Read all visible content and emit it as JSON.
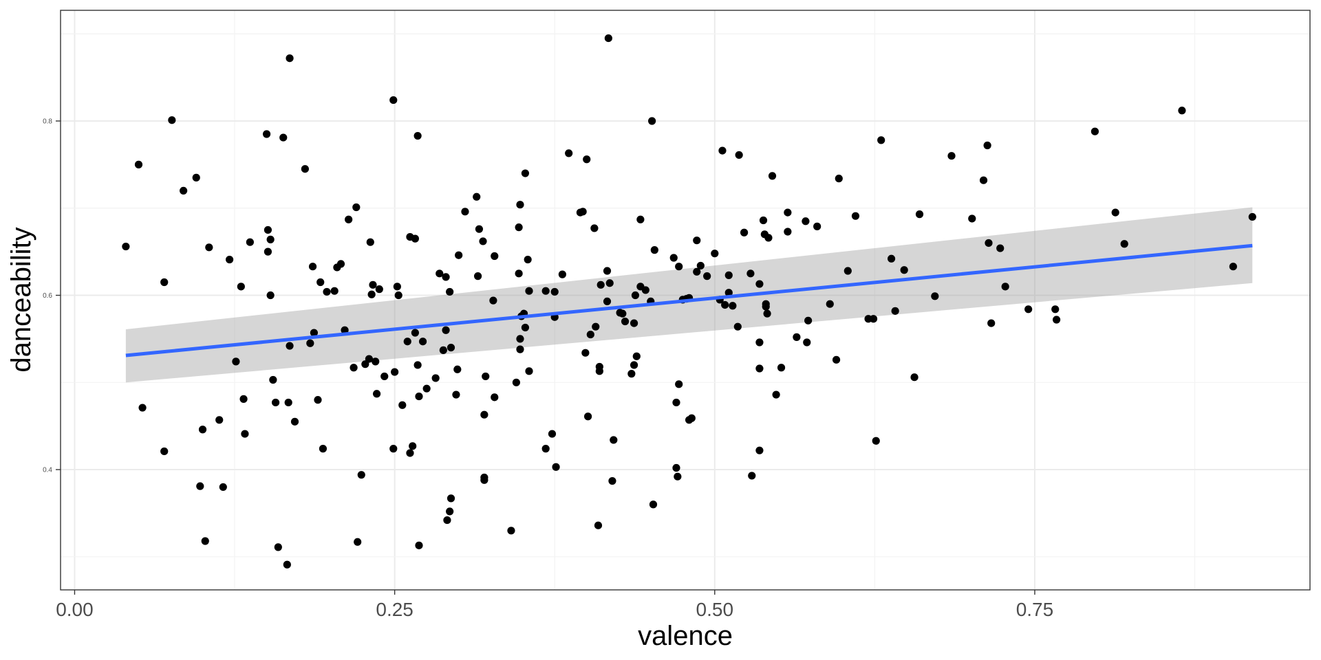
{
  "chart_data": {
    "type": "scatter",
    "title": "",
    "xlabel": "valence",
    "ylabel": "danceability",
    "xlim": [
      -0.011,
      0.965
    ],
    "ylim": [
      0.262,
      0.927
    ],
    "x_ticks": [
      0.0,
      0.25,
      0.5,
      0.75
    ],
    "x_tick_labels": [
      "0.00",
      "0.25",
      "0.50",
      "0.75"
    ],
    "y_ticks": [
      0.4,
      0.6,
      0.8
    ],
    "y_tick_labels": [
      "0.4",
      "0.6",
      "0.8"
    ],
    "grid": true,
    "legend": "none",
    "colors": {
      "points": "#000000",
      "fit_line": "#3366ff",
      "ci_band": "#999999"
    },
    "fit": {
      "method": "lm",
      "se": true,
      "x": [
        0.04,
        0.92
      ],
      "y": [
        0.531,
        0.657
      ],
      "ci_lower": [
        0.5,
        0.614
      ],
      "ci_upper": [
        0.561,
        0.701
      ]
    },
    "points": [
      [
        0.04,
        0.656
      ],
      [
        0.05,
        0.75
      ],
      [
        0.053,
        0.471
      ],
      [
        0.07,
        0.615
      ],
      [
        0.07,
        0.421
      ],
      [
        0.076,
        0.801
      ],
      [
        0.085,
        0.72
      ],
      [
        0.095,
        0.735
      ],
      [
        0.098,
        0.381
      ],
      [
        0.1,
        0.446
      ],
      [
        0.102,
        0.318
      ],
      [
        0.105,
        0.655
      ],
      [
        0.113,
        0.457
      ],
      [
        0.116,
        0.38
      ],
      [
        0.121,
        0.641
      ],
      [
        0.126,
        0.524
      ],
      [
        0.13,
        0.61
      ],
      [
        0.132,
        0.481
      ],
      [
        0.133,
        0.441
      ],
      [
        0.137,
        0.661
      ],
      [
        0.15,
        0.785
      ],
      [
        0.151,
        0.675
      ],
      [
        0.151,
        0.65
      ],
      [
        0.153,
        0.664
      ],
      [
        0.153,
        0.6
      ],
      [
        0.155,
        0.503
      ],
      [
        0.157,
        0.477
      ],
      [
        0.159,
        0.311
      ],
      [
        0.163,
        0.781
      ],
      [
        0.166,
        0.291
      ],
      [
        0.167,
        0.477
      ],
      [
        0.168,
        0.542
      ],
      [
        0.168,
        0.872
      ],
      [
        0.172,
        0.455
      ],
      [
        0.18,
        0.745
      ],
      [
        0.184,
        0.545
      ],
      [
        0.186,
        0.633
      ],
      [
        0.187,
        0.557
      ],
      [
        0.19,
        0.48
      ],
      [
        0.192,
        0.615
      ],
      [
        0.194,
        0.424
      ],
      [
        0.197,
        0.604
      ],
      [
        0.203,
        0.605
      ],
      [
        0.205,
        0.632
      ],
      [
        0.208,
        0.636
      ],
      [
        0.211,
        0.56
      ],
      [
        0.214,
        0.687
      ],
      [
        0.218,
        0.517
      ],
      [
        0.22,
        0.701
      ],
      [
        0.221,
        0.317
      ],
      [
        0.224,
        0.394
      ],
      [
        0.227,
        0.521
      ],
      [
        0.23,
        0.527
      ],
      [
        0.231,
        0.661
      ],
      [
        0.232,
        0.601
      ],
      [
        0.233,
        0.612
      ],
      [
        0.235,
        0.524
      ],
      [
        0.236,
        0.487
      ],
      [
        0.238,
        0.607
      ],
      [
        0.242,
        0.507
      ],
      [
        0.249,
        0.424
      ],
      [
        0.249,
        0.824
      ],
      [
        0.25,
        0.512
      ],
      [
        0.252,
        0.61
      ],
      [
        0.253,
        0.6
      ],
      [
        0.256,
        0.474
      ],
      [
        0.26,
        0.547
      ],
      [
        0.262,
        0.419
      ],
      [
        0.262,
        0.667
      ],
      [
        0.264,
        0.427
      ],
      [
        0.266,
        0.665
      ],
      [
        0.266,
        0.557
      ],
      [
        0.268,
        0.783
      ],
      [
        0.268,
        0.52
      ],
      [
        0.269,
        0.484
      ],
      [
        0.269,
        0.313
      ],
      [
        0.272,
        0.547
      ],
      [
        0.275,
        0.493
      ],
      [
        0.282,
        0.505
      ],
      [
        0.285,
        0.625
      ],
      [
        0.288,
        0.537
      ],
      [
        0.29,
        0.621
      ],
      [
        0.29,
        0.56
      ],
      [
        0.291,
        0.342
      ],
      [
        0.293,
        0.352
      ],
      [
        0.293,
        0.604
      ],
      [
        0.294,
        0.54
      ],
      [
        0.294,
        0.367
      ],
      [
        0.298,
        0.486
      ],
      [
        0.299,
        0.515
      ],
      [
        0.3,
        0.646
      ],
      [
        0.305,
        0.696
      ],
      [
        0.314,
        0.713
      ],
      [
        0.315,
        0.622
      ],
      [
        0.316,
        0.676
      ],
      [
        0.319,
        0.662
      ],
      [
        0.32,
        0.463
      ],
      [
        0.32,
        0.391
      ],
      [
        0.32,
        0.388
      ],
      [
        0.321,
        0.507
      ],
      [
        0.327,
        0.594
      ],
      [
        0.328,
        0.483
      ],
      [
        0.328,
        0.645
      ],
      [
        0.341,
        0.33
      ],
      [
        0.345,
        0.5
      ],
      [
        0.347,
        0.678
      ],
      [
        0.347,
        0.625
      ],
      [
        0.348,
        0.704
      ],
      [
        0.348,
        0.55
      ],
      [
        0.348,
        0.538
      ],
      [
        0.349,
        0.576
      ],
      [
        0.351,
        0.579
      ],
      [
        0.352,
        0.74
      ],
      [
        0.352,
        0.563
      ],
      [
        0.354,
        0.641
      ],
      [
        0.355,
        0.605
      ],
      [
        0.355,
        0.513
      ],
      [
        0.368,
        0.605
      ],
      [
        0.368,
        0.424
      ],
      [
        0.373,
        0.441
      ],
      [
        0.375,
        0.604
      ],
      [
        0.375,
        0.575
      ],
      [
        0.376,
        0.403
      ],
      [
        0.381,
        0.624
      ],
      [
        0.386,
        0.763
      ],
      [
        0.395,
        0.695
      ],
      [
        0.397,
        0.696
      ],
      [
        0.399,
        0.534
      ],
      [
        0.4,
        0.756
      ],
      [
        0.401,
        0.461
      ],
      [
        0.403,
        0.555
      ],
      [
        0.406,
        0.677
      ],
      [
        0.407,
        0.564
      ],
      [
        0.409,
        0.336
      ],
      [
        0.41,
        0.513
      ],
      [
        0.41,
        0.518
      ],
      [
        0.411,
        0.612
      ],
      [
        0.416,
        0.628
      ],
      [
        0.416,
        0.593
      ],
      [
        0.417,
        0.895
      ],
      [
        0.418,
        0.614
      ],
      [
        0.42,
        0.387
      ],
      [
        0.421,
        0.434
      ],
      [
        0.426,
        0.58
      ],
      [
        0.428,
        0.579
      ],
      [
        0.43,
        0.57
      ],
      [
        0.435,
        0.51
      ],
      [
        0.437,
        0.52
      ],
      [
        0.437,
        0.568
      ],
      [
        0.438,
        0.6
      ],
      [
        0.439,
        0.53
      ],
      [
        0.442,
        0.61
      ],
      [
        0.442,
        0.687
      ],
      [
        0.446,
        0.606
      ],
      [
        0.45,
        0.593
      ],
      [
        0.451,
        0.8
      ],
      [
        0.452,
        0.36
      ],
      [
        0.453,
        0.652
      ],
      [
        0.468,
        0.643
      ],
      [
        0.47,
        0.477
      ],
      [
        0.47,
        0.402
      ],
      [
        0.471,
        0.392
      ],
      [
        0.472,
        0.498
      ],
      [
        0.472,
        0.633
      ],
      [
        0.475,
        0.595
      ],
      [
        0.478,
        0.596
      ],
      [
        0.48,
        0.457
      ],
      [
        0.48,
        0.597
      ],
      [
        0.482,
        0.459
      ],
      [
        0.486,
        0.663
      ],
      [
        0.486,
        0.627
      ],
      [
        0.489,
        0.634
      ],
      [
        0.494,
        0.622
      ],
      [
        0.5,
        0.648
      ],
      [
        0.504,
        0.595
      ],
      [
        0.506,
        0.766
      ],
      [
        0.508,
        0.589
      ],
      [
        0.511,
        0.623
      ],
      [
        0.511,
        0.603
      ],
      [
        0.514,
        0.588
      ],
      [
        0.518,
        0.564
      ],
      [
        0.519,
        0.761
      ],
      [
        0.523,
        0.672
      ],
      [
        0.528,
        0.625
      ],
      [
        0.529,
        0.393
      ],
      [
        0.535,
        0.613
      ],
      [
        0.535,
        0.546
      ],
      [
        0.535,
        0.516
      ],
      [
        0.535,
        0.422
      ],
      [
        0.538,
        0.686
      ],
      [
        0.539,
        0.67
      ],
      [
        0.54,
        0.59
      ],
      [
        0.54,
        0.587
      ],
      [
        0.541,
        0.579
      ],
      [
        0.542,
        0.666
      ],
      [
        0.545,
        0.737
      ],
      [
        0.548,
        0.486
      ],
      [
        0.552,
        0.517
      ],
      [
        0.557,
        0.695
      ],
      [
        0.557,
        0.673
      ],
      [
        0.564,
        0.552
      ],
      [
        0.571,
        0.685
      ],
      [
        0.572,
        0.546
      ],
      [
        0.573,
        0.571
      ],
      [
        0.58,
        0.679
      ],
      [
        0.59,
        0.59
      ],
      [
        0.595,
        0.526
      ],
      [
        0.597,
        0.734
      ],
      [
        0.604,
        0.628
      ],
      [
        0.61,
        0.691
      ],
      [
        0.62,
        0.573
      ],
      [
        0.624,
        0.573
      ],
      [
        0.626,
        0.433
      ],
      [
        0.63,
        0.778
      ],
      [
        0.638,
        0.642
      ],
      [
        0.641,
        0.582
      ],
      [
        0.648,
        0.629
      ],
      [
        0.656,
        0.506
      ],
      [
        0.66,
        0.693
      ],
      [
        0.672,
        0.599
      ],
      [
        0.685,
        0.76
      ],
      [
        0.701,
        0.688
      ],
      [
        0.71,
        0.732
      ],
      [
        0.713,
        0.772
      ],
      [
        0.714,
        0.66
      ],
      [
        0.716,
        0.568
      ],
      [
        0.723,
        0.654
      ],
      [
        0.727,
        0.61
      ],
      [
        0.745,
        0.584
      ],
      [
        0.766,
        0.584
      ],
      [
        0.767,
        0.572
      ],
      [
        0.797,
        0.788
      ],
      [
        0.813,
        0.695
      ],
      [
        0.82,
        0.659
      ],
      [
        0.865,
        0.812
      ],
      [
        0.905,
        0.633
      ],
      [
        0.92,
        0.69
      ]
    ]
  }
}
